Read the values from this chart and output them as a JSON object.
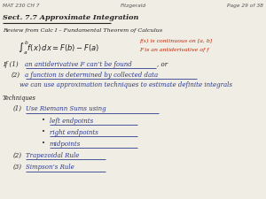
{
  "header_left": "MAT 230 CH 7",
  "header_center": "Fitzgerald",
  "header_right": "Page 29 of 38",
  "title": "Sect. 7.7 Approximate Integration",
  "review_label": "Review from Calc I – Fundamental Theorem of Calculus",
  "integral_note1": "f(x) is continuous on [a, b]",
  "integral_note2": "F is an antiderivative of f",
  "if1_text": "an antiderivative F can’t be found",
  "if1_suffix": ", or",
  "if2_text": "a function is determined by collected data",
  "if2_cont": "we can use approximation techniques to estimate definite integrals",
  "techniques_label": "Techniques",
  "tech1_text": "Use Riemann Sums using",
  "bullet1": "left endpoints",
  "bullet2": "right endpoints",
  "bullet3": "midpoints",
  "tech2_text": "Trapezoidal Rule",
  "tech3_text": "Simpson’s Rule",
  "bg_color": "#f0ede4",
  "header_color": "#555555",
  "black": "#222222",
  "blue_color": "#2b3a8f",
  "red_color": "#bb2200",
  "line_color": "#2b3a8f"
}
